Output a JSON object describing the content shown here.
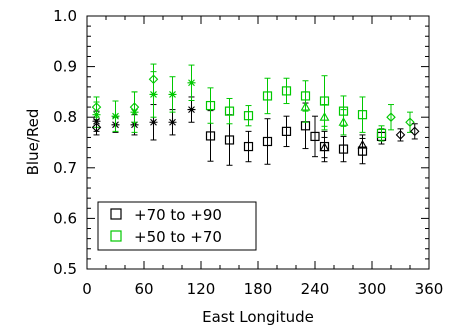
{
  "chart_data": {
    "type": "scatter",
    "title": "",
    "xlabel": "East Longitude",
    "ylabel": "Blue/Red",
    "xlim": [
      0,
      360
    ],
    "ylim": [
      0.5,
      1.0
    ],
    "xticks": [
      "0",
      "60",
      "120",
      "180",
      "240",
      "300",
      "360"
    ],
    "xtick_values": [
      0,
      60,
      120,
      180,
      240,
      300,
      360
    ],
    "yticks": [
      "0.5",
      "0.6",
      "0.7",
      "0.8",
      "0.9",
      "1.0"
    ],
    "ytick_values": [
      0.5,
      0.6,
      0.7,
      0.8,
      0.9,
      1.0
    ],
    "grid": false,
    "legend_position": "bottom-left",
    "series": [
      {
        "name": "+70 to +90",
        "marker": "square",
        "color": "#000000",
        "points": [
          {
            "x": 130,
            "y": 0.763,
            "err": 0.05
          },
          {
            "x": 150,
            "y": 0.755,
            "err": 0.05
          },
          {
            "x": 170,
            "y": 0.742,
            "err": 0.03
          },
          {
            "x": 190,
            "y": 0.752,
            "err": 0.045
          },
          {
            "x": 210,
            "y": 0.772,
            "err": 0.03
          },
          {
            "x": 230,
            "y": 0.783,
            "err": 0.045
          },
          {
            "x": 240,
            "y": 0.762,
            "err": 0.04
          },
          {
            "x": 250,
            "y": 0.742,
            "err": 0.03
          },
          {
            "x": 270,
            "y": 0.737,
            "err": 0.025
          },
          {
            "x": 290,
            "y": 0.733,
            "err": 0.025
          },
          {
            "x": 310,
            "y": 0.762,
            "err": 0.015
          }
        ]
      },
      {
        "name": "+50 to +70",
        "marker": "square",
        "color": "#00c800",
        "points": [
          {
            "x": 130,
            "y": 0.823,
            "err": 0.035
          },
          {
            "x": 150,
            "y": 0.812,
            "err": 0.025
          },
          {
            "x": 170,
            "y": 0.803,
            "err": 0.02
          },
          {
            "x": 190,
            "y": 0.842,
            "err": 0.035
          },
          {
            "x": 210,
            "y": 0.852,
            "err": 0.025
          },
          {
            "x": 230,
            "y": 0.842,
            "err": 0.03
          },
          {
            "x": 250,
            "y": 0.832,
            "err": 0.05
          },
          {
            "x": 270,
            "y": 0.812,
            "err": 0.03
          },
          {
            "x": 290,
            "y": 0.805,
            "err": 0.035
          },
          {
            "x": 310,
            "y": 0.768,
            "err": 0.015
          }
        ]
      },
      {
        "name": "",
        "marker": "asterisk",
        "color": "#000000",
        "points": [
          {
            "x": 10,
            "y": 0.792,
            "err": 0.02
          },
          {
            "x": 30,
            "y": 0.785,
            "err": 0.015
          },
          {
            "x": 50,
            "y": 0.785,
            "err": 0.02
          },
          {
            "x": 70,
            "y": 0.79,
            "err": 0.035
          },
          {
            "x": 90,
            "y": 0.79,
            "err": 0.025
          },
          {
            "x": 110,
            "y": 0.815,
            "err": 0.025
          }
        ]
      },
      {
        "name": "",
        "marker": "asterisk",
        "color": "#00c800",
        "points": [
          {
            "x": 10,
            "y": 0.805,
            "err": 0.025
          },
          {
            "x": 30,
            "y": 0.802,
            "err": 0.03
          },
          {
            "x": 50,
            "y": 0.81,
            "err": 0.04
          },
          {
            "x": 70,
            "y": 0.845,
            "err": 0.045
          },
          {
            "x": 90,
            "y": 0.845,
            "err": 0.035
          },
          {
            "x": 110,
            "y": 0.868,
            "err": 0.035
          }
        ]
      },
      {
        "name": "",
        "marker": "diamond",
        "color": "#00c800",
        "points": [
          {
            "x": 10,
            "y": 0.82,
            "err": 0.02
          },
          {
            "x": 50,
            "y": 0.82,
            "err": 0.03
          },
          {
            "x": 70,
            "y": 0.875,
            "err": 0.03
          },
          {
            "x": 320,
            "y": 0.8,
            "err": 0.025
          },
          {
            "x": 340,
            "y": 0.79,
            "err": 0.02
          }
        ]
      },
      {
        "name": "",
        "marker": "diamond",
        "color": "#000000",
        "points": [
          {
            "x": 10,
            "y": 0.78,
            "err": 0.015
          },
          {
            "x": 330,
            "y": 0.765,
            "err": 0.012
          },
          {
            "x": 345,
            "y": 0.772,
            "err": 0.015
          }
        ]
      },
      {
        "name": "",
        "marker": "triangle",
        "color": "#00c800",
        "points": [
          {
            "x": 230,
            "y": 0.82,
            "err": 0.03
          },
          {
            "x": 250,
            "y": 0.8,
            "err": 0.025
          },
          {
            "x": 270,
            "y": 0.79,
            "err": 0.025
          }
        ]
      },
      {
        "name": "",
        "marker": "triangle",
        "color": "#000000",
        "points": [
          {
            "x": 250,
            "y": 0.74,
            "err": 0.02
          },
          {
            "x": 290,
            "y": 0.745,
            "err": 0.02
          }
        ]
      }
    ]
  }
}
